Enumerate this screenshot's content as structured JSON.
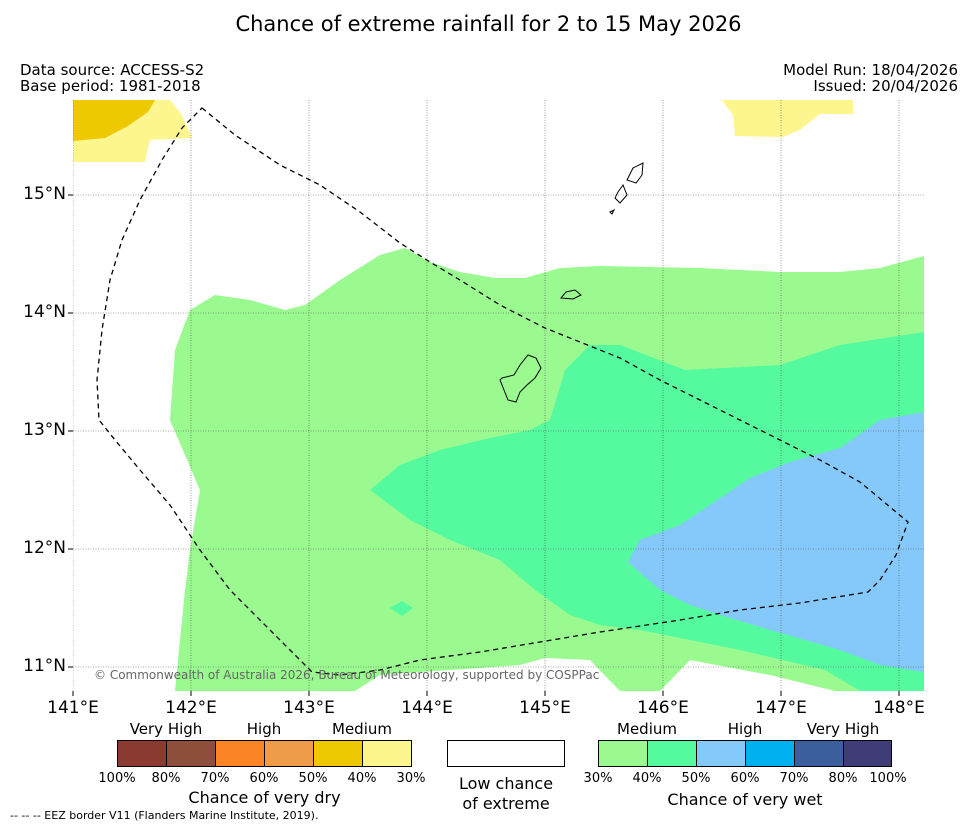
{
  "title": "Chance of extreme rainfall for 2 to 15 May 2026",
  "meta": {
    "data_source": "Data source: ACCESS-S2",
    "base_period": "Base period: 1981-2018",
    "model_run": "Model Run: 18/04/2026",
    "issued": "Issued: 20/04/2026"
  },
  "axes": {
    "x_ticks": [
      "141°E",
      "142°E",
      "143°E",
      "144°E",
      "145°E",
      "146°E",
      "147°E",
      "148°E"
    ],
    "y_ticks": [
      "15°N",
      "14°N",
      "13°N",
      "12°N",
      "11°N"
    ]
  },
  "copyright": "© Commonwealth of Australia 2026, Bureau of Meteorology, supported by COSPPac",
  "legend": {
    "dry": {
      "title": "Chance of very dry",
      "categories": [
        "Very High",
        "High",
        "Medium"
      ],
      "bins": [
        {
          "color": "#8b3a32"
        },
        {
          "color": "#8e4e3c"
        },
        {
          "color": "#fd8424"
        },
        {
          "color": "#ee9c4a"
        },
        {
          "color": "#eec800"
        },
        {
          "color": "#fdf58e"
        }
      ],
      "percent_labels": [
        "100%",
        "80%",
        "70%",
        "60%",
        "50%",
        "40%",
        "30%"
      ]
    },
    "neutral": {
      "label_line1": "Low chance",
      "label_line2": "of extreme"
    },
    "wet": {
      "title": "Chance of very wet",
      "categories": [
        "Medium",
        "High",
        "Very High"
      ],
      "bins": [
        {
          "color": "#9afa90"
        },
        {
          "color": "#55fa9e"
        },
        {
          "color": "#85c9fa"
        },
        {
          "color": "#00b1ef"
        },
        {
          "color": "#3a5f9c"
        },
        {
          "color": "#403c77"
        }
      ],
      "percent_labels": [
        "30%",
        "40%",
        "50%",
        "60%",
        "70%",
        "80%",
        "100%"
      ]
    }
  },
  "footnote": "--  --  -- EEZ border V11 (Flanders Marine Institute, 2019)."
}
